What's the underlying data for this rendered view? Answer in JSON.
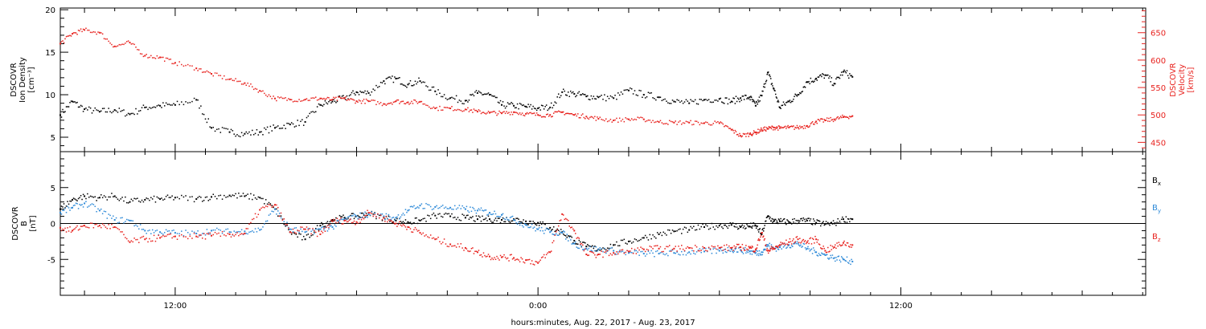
{
  "colors": {
    "axis": "#000000",
    "black_series": "#000000",
    "red_series": "#e8231f",
    "blue_series": "#2e8ad8",
    "background": "#ffffff"
  },
  "chart_data": [
    {
      "type": "scatter",
      "panel": "plasma",
      "x_unit": "hours since Aug. 22, 2017 00:00",
      "xlim": [
        8.2,
        44.1
      ],
      "x_tick_labels": [
        "12:00",
        "0:00",
        "12:00"
      ],
      "xlabel": "hours:minutes, Aug. 22, 2017 - Aug. 23, 2017",
      "y_left": {
        "label_lines": [
          "DSCOVR",
          "Ion Density",
          "[cm⁻³]"
        ],
        "ylim": [
          3.3,
          20.2
        ],
        "ticks": [
          5,
          10,
          15,
          20
        ]
      },
      "y_right": {
        "label_lines": [
          "DSCOVR",
          "Velocity",
          "[km/s]"
        ],
        "ylim": [
          433,
          695
        ],
        "ticks": [
          450,
          500,
          550,
          600,
          650
        ],
        "color": "#e8231f"
      },
      "series": [
        {
          "axis": "left",
          "color": "#000000",
          "x": [
            8.2,
            8.6,
            9.0,
            9.5,
            10.0,
            10.5,
            11.0,
            11.5,
            12.0,
            12.7,
            13.2,
            13.8,
            14.3,
            14.8,
            15.3,
            15.8,
            16.3,
            16.8,
            17.2,
            17.6,
            18.0,
            18.4,
            18.9,
            19.3,
            19.7,
            20.1,
            20.6,
            21.1,
            21.6,
            22.0,
            22.4,
            22.8,
            23.2,
            23.6,
            24.0,
            24.4,
            24.8,
            25.2,
            25.6,
            26.0,
            26.5,
            27.0,
            27.5,
            28.0,
            28.5,
            29.0,
            29.5,
            30.0,
            30.4,
            30.7,
            31.0,
            31.2,
            31.4,
            31.6,
            31.8,
            32.0,
            32.3,
            32.6,
            32.9,
            33.2,
            33.5,
            33.8,
            34.1,
            34.4
          ],
          "y": [
            7.6,
            9.2,
            8.3,
            8.0,
            8.2,
            7.7,
            8.5,
            8.7,
            8.8,
            9.4,
            6.1,
            5.6,
            5.4,
            5.6,
            6.1,
            6.5,
            6.8,
            8.8,
            9.2,
            9.6,
            10.3,
            10.2,
            11.6,
            11.9,
            11.2,
            11.6,
            10.4,
            9.6,
            9.3,
            10.2,
            10.0,
            8.8,
            8.7,
            8.6,
            8.4,
            8.5,
            10.3,
            10.1,
            9.8,
            9.7,
            9.6,
            10.5,
            10.0,
            9.7,
            9.2,
            9.0,
            9.4,
            9.5,
            9.2,
            9.6,
            9.7,
            8.7,
            9.9,
            12.6,
            10.7,
            8.5,
            9.2,
            10.0,
            11.5,
            11.9,
            12.3,
            11.3,
            12.7,
            12.1
          ]
        },
        {
          "axis": "right",
          "color": "#e8231f",
          "x": [
            8.2,
            8.6,
            9.0,
            9.5,
            10.0,
            10.5,
            11.0,
            11.5,
            12.0,
            12.7,
            13.2,
            13.8,
            14.3,
            14.8,
            15.3,
            15.8,
            16.3,
            16.8,
            17.2,
            17.6,
            18.0,
            18.4,
            18.9,
            19.3,
            19.7,
            20.1,
            20.6,
            21.1,
            21.6,
            22.0,
            22.4,
            22.8,
            23.2,
            23.6,
            24.0,
            24.4,
            24.8,
            25.2,
            25.6,
            26.0,
            26.5,
            27.0,
            27.5,
            28.0,
            28.5,
            29.0,
            29.5,
            30.0,
            30.4,
            30.7,
            31.0,
            31.2,
            31.4,
            31.6,
            31.8,
            32.0,
            32.3,
            32.6,
            32.9,
            33.2,
            33.5,
            33.8,
            34.1,
            34.4
          ],
          "y": [
            630,
            648,
            655,
            650,
            625,
            632,
            608,
            605,
            595,
            585,
            575,
            565,
            558,
            544,
            530,
            528,
            528,
            530,
            528,
            530,
            525,
            525,
            520,
            525,
            523,
            524,
            512,
            512,
            510,
            506,
            504,
            503,
            505,
            502,
            500,
            500,
            505,
            500,
            497,
            493,
            490,
            492,
            492,
            487,
            486,
            486,
            485,
            485,
            473,
            462,
            465,
            468,
            473,
            475,
            477,
            476,
            477,
            477,
            480,
            488,
            490,
            492,
            496,
            498
          ]
        }
      ]
    },
    {
      "type": "scatter",
      "panel": "magnetic_field",
      "x_unit": "hours since Aug. 22, 2017 00:00",
      "xlim": [
        8.2,
        44.1
      ],
      "y_left": {
        "label_lines": [
          "DSCOVR",
          "B",
          "[nT]"
        ],
        "ylim": [
          -10.0,
          10.0
        ],
        "ticks": [
          -5,
          0,
          5
        ]
      },
      "zero_line": true,
      "legend_position": "right",
      "series": [
        {
          "name": "Bx",
          "name_main": "B",
          "name_sub": "x",
          "color": "#000000",
          "x": [
            8.2,
            8.6,
            9.0,
            9.5,
            10.0,
            10.5,
            11.0,
            11.5,
            12.0,
            12.7,
            13.2,
            13.8,
            14.3,
            14.8,
            15.3,
            15.8,
            16.3,
            16.8,
            17.2,
            17.6,
            18.0,
            18.4,
            18.9,
            19.3,
            19.7,
            20.1,
            20.6,
            21.1,
            21.6,
            22.0,
            22.4,
            22.8,
            23.2,
            23.6,
            24.0,
            24.4,
            24.8,
            25.2,
            25.6,
            26.0,
            26.5,
            27.0,
            27.5,
            28.0,
            28.5,
            29.0,
            29.5,
            30.0,
            30.4,
            30.7,
            31.0,
            31.2,
            31.4,
            31.6,
            31.8,
            32.0,
            32.3,
            32.6,
            32.9,
            33.2,
            33.5,
            33.8,
            34.1,
            34.4
          ],
          "y": [
            2.0,
            3.3,
            3.8,
            3.6,
            3.8,
            3.0,
            3.3,
            3.4,
            3.6,
            3.4,
            3.7,
            3.9,
            3.8,
            3.6,
            2.0,
            -1.2,
            -2.2,
            -0.3,
            0.5,
            0.8,
            1.0,
            1.4,
            0.8,
            0.4,
            0.2,
            0.4,
            1.1,
            1.0,
            0.8,
            0.6,
            0.6,
            0.5,
            0.6,
            0.3,
            0.1,
            -0.6,
            -1.2,
            -2.4,
            -3.2,
            -3.6,
            -3.0,
            -2.5,
            -2.0,
            -1.5,
            -1.1,
            -0.9,
            -0.5,
            -0.3,
            -0.2,
            -0.5,
            -0.4,
            -0.3,
            -1.5,
            1.0,
            0.3,
            0.3,
            0.2,
            0.4,
            0.4,
            0.1,
            -0.1,
            0.0,
            0.6,
            0.6
          ]
        },
        {
          "name": "By",
          "name_main": "B",
          "name_sub": "y",
          "color": "#2e8ad8",
          "x": [
            8.2,
            8.6,
            9.0,
            9.5,
            10.0,
            10.5,
            11.0,
            11.5,
            12.0,
            12.7,
            13.2,
            13.8,
            14.3,
            14.8,
            15.3,
            15.8,
            16.3,
            16.8,
            17.2,
            17.6,
            18.0,
            18.4,
            18.9,
            19.3,
            19.7,
            20.1,
            20.6,
            21.1,
            21.6,
            22.0,
            22.4,
            22.8,
            23.2,
            23.6,
            24.0,
            24.4,
            24.8,
            25.2,
            25.6,
            26.0,
            26.5,
            27.0,
            27.5,
            28.0,
            28.5,
            29.0,
            29.5,
            30.0,
            30.4,
            30.7,
            31.0,
            31.2,
            31.4,
            31.6,
            31.8,
            32.0,
            32.3,
            32.6,
            32.9,
            33.2,
            33.5,
            33.8,
            34.1,
            34.4
          ],
          "y": [
            1.5,
            2.2,
            2.8,
            1.8,
            0.5,
            0.4,
            -1.0,
            -1.2,
            -1.3,
            -1.4,
            -1.0,
            -1.2,
            -1.1,
            -0.9,
            2.0,
            -0.8,
            -1.2,
            -0.8,
            -0.5,
            0.6,
            1.0,
            1.3,
            1.0,
            0.8,
            1.8,
            2.5,
            2.3,
            2.2,
            2.0,
            1.8,
            1.5,
            1.2,
            0.5,
            -0.2,
            -0.8,
            -1.2,
            -1.3,
            -2.8,
            -3.5,
            -3.6,
            -3.8,
            -4.1,
            -4.2,
            -4.2,
            -4.1,
            -4.0,
            -3.9,
            -3.8,
            -3.6,
            -3.7,
            -3.9,
            -4.1,
            -4.0,
            -3.0,
            -3.5,
            -3.3,
            -3.0,
            -2.8,
            -3.5,
            -4.0,
            -4.4,
            -4.8,
            -5.0,
            -5.3
          ]
        },
        {
          "name": "Bz",
          "name_main": "B",
          "name_sub": "z",
          "color": "#e8231f",
          "x": [
            8.2,
            8.6,
            9.0,
            9.5,
            10.0,
            10.5,
            11.0,
            11.5,
            12.0,
            12.7,
            13.2,
            13.8,
            14.3,
            14.8,
            15.3,
            15.8,
            16.3,
            16.8,
            17.2,
            17.6,
            18.0,
            18.4,
            18.9,
            19.3,
            19.7,
            20.1,
            20.6,
            21.1,
            21.6,
            22.0,
            22.4,
            22.8,
            23.2,
            23.6,
            24.0,
            24.4,
            24.8,
            25.2,
            25.6,
            26.0,
            26.5,
            27.0,
            27.5,
            28.0,
            28.5,
            29.0,
            29.5,
            30.0,
            30.4,
            30.7,
            31.0,
            31.2,
            31.4,
            31.6,
            31.8,
            32.0,
            32.3,
            32.6,
            32.9,
            33.2,
            33.5,
            33.8,
            34.1,
            34.4
          ],
          "y": [
            -0.6,
            -1.0,
            -0.3,
            -0.3,
            -0.5,
            -2.6,
            -2.2,
            -2.0,
            -1.8,
            -1.8,
            -1.7,
            -1.5,
            -1.4,
            1.9,
            2.6,
            -1.2,
            -0.8,
            -1.5,
            0.3,
            0.4,
            0.2,
            1.5,
            0.8,
            0.0,
            -0.5,
            -1.3,
            -2.2,
            -2.9,
            -3.4,
            -4.0,
            -4.6,
            -4.7,
            -4.8,
            -5.1,
            -5.5,
            -4.0,
            1.3,
            -1.0,
            -4.3,
            -4.3,
            -4.1,
            -3.9,
            -3.6,
            -3.5,
            -3.5,
            -3.4,
            -3.4,
            -3.4,
            -3.4,
            -3.3,
            -3.4,
            -3.6,
            -1.3,
            -3.8,
            -3.5,
            -3.0,
            -2.6,
            -2.2,
            -2.6,
            -2.2,
            -3.8,
            -3.3,
            -2.7,
            -3.0
          ]
        }
      ]
    }
  ]
}
